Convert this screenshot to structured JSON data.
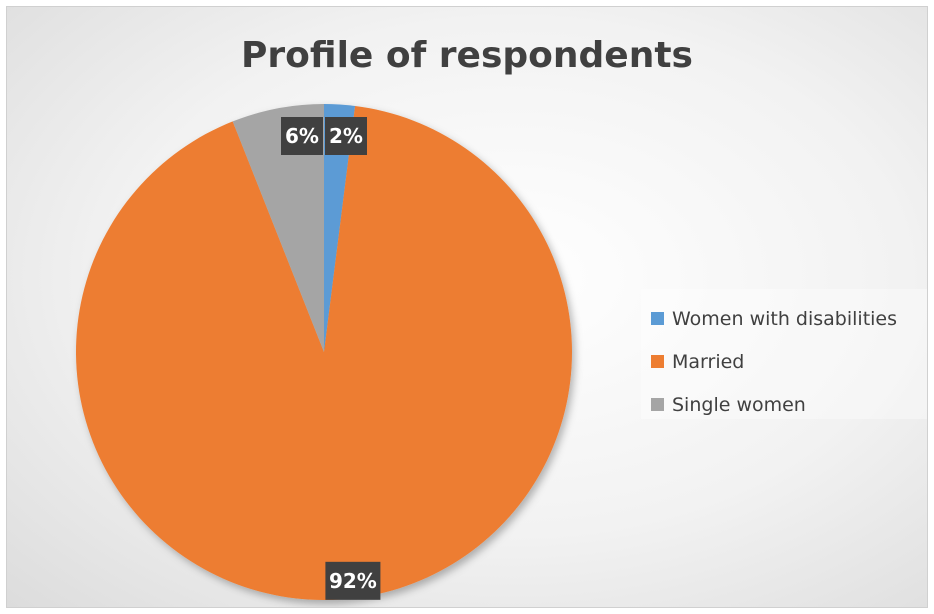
{
  "chart_data": {
    "type": "pie",
    "title": "Profile of respondents",
    "categories": [
      "Women with disabilities",
      "Married",
      "Single women"
    ],
    "values": [
      2,
      92,
      6
    ],
    "value_labels": [
      "2%",
      "92%",
      "6%"
    ],
    "colors": [
      "#5b9bd5",
      "#ed7d31",
      "#a5a5a5"
    ],
    "label_background": "#404040",
    "legend_position": "right"
  }
}
